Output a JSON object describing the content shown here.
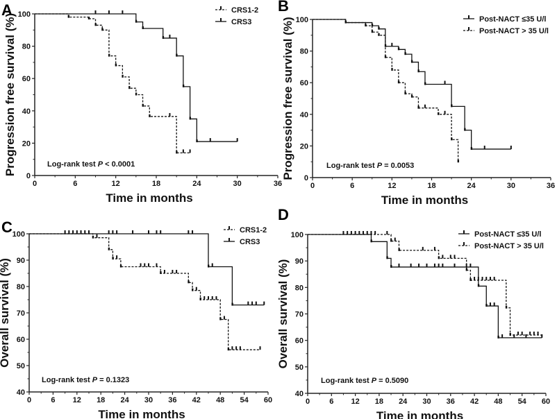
{
  "chart_data": [
    {
      "panel": "A",
      "type": "line",
      "xlabel": "Time in months",
      "ylabel": "Progression free survival (%)",
      "xlim": [
        0,
        36
      ],
      "ylim": [
        0,
        100
      ],
      "xticks": [
        0,
        6,
        12,
        18,
        24,
        30,
        36
      ],
      "yticks": [
        0,
        20,
        40,
        60,
        80,
        100
      ],
      "annotation": {
        "prefix": "Log-rank test ",
        "p": "P",
        "suffix": " < 0.0001"
      },
      "legend_position": "top-right",
      "series": [
        {
          "name": "CRS1-2",
          "style": "dashed",
          "steps": [
            [
              0,
              100
            ],
            [
              5,
              98
            ],
            [
              8,
              97
            ],
            [
              9,
              93
            ],
            [
              10,
              90
            ],
            [
              11,
              74
            ],
            [
              12,
              68
            ],
            [
              13,
              61
            ],
            [
              14,
              54
            ],
            [
              15,
              50
            ],
            [
              16,
              43
            ],
            [
              17,
              36.5
            ],
            [
              21,
              14
            ]
          ],
          "end": 23,
          "censored": [
            [
              20,
              36.5
            ],
            [
              22,
              14
            ],
            [
              23,
              14
            ]
          ]
        },
        {
          "name": "CRS3",
          "style": "solid",
          "steps": [
            [
              0,
              100
            ],
            [
              15,
              95
            ],
            [
              16,
              91
            ],
            [
              19,
              85
            ],
            [
              21,
              74
            ],
            [
              22,
              55
            ],
            [
              23,
              35
            ],
            [
              24,
              21
            ]
          ],
          "end": 30,
          "censored": [
            [
              9,
              100
            ],
            [
              11,
              100
            ],
            [
              13,
              100
            ],
            [
              20,
              85
            ],
            [
              26,
              21
            ],
            [
              30,
              21
            ]
          ]
        }
      ]
    },
    {
      "panel": "B",
      "type": "line",
      "xlabel": "Time in months",
      "ylabel": "Progression free survival (%)",
      "xlim": [
        0,
        36
      ],
      "ylim": [
        0,
        100
      ],
      "xticks": [
        0,
        6,
        12,
        18,
        24,
        30,
        36
      ],
      "yticks": [
        0,
        20,
        40,
        60,
        80,
        100
      ],
      "annotation": {
        "prefix": "Log-rank test ",
        "p": "P",
        "suffix": " = 0.0053"
      },
      "legend_position": "top-right",
      "series": [
        {
          "name": "Post-NACT ≤35 U/l",
          "style": "solid",
          "steps": [
            [
              0,
              100
            ],
            [
              5,
              98
            ],
            [
              9,
              96
            ],
            [
              10,
              94
            ],
            [
              11,
              83
            ],
            [
              13,
              81
            ],
            [
              14,
              78
            ],
            [
              15,
              73
            ],
            [
              16,
              67
            ],
            [
              17,
              59
            ],
            [
              21,
              45
            ],
            [
              23,
              30
            ],
            [
              24,
              18
            ]
          ],
          "end": 30,
          "censored": [
            [
              12,
              83
            ],
            [
              20,
              59
            ],
            [
              26,
              18
            ],
            [
              30,
              18
            ]
          ]
        },
        {
          "name": "Post-NACT > 35 U/l",
          "style": "dashed",
          "steps": [
            [
              0,
              100
            ],
            [
              5,
              98
            ],
            [
              8,
              96
            ],
            [
              9,
              92
            ],
            [
              10,
              90
            ],
            [
              11,
              76
            ],
            [
              12,
              68
            ],
            [
              13,
              60
            ],
            [
              14,
              53
            ],
            [
              15,
              51
            ],
            [
              16,
              44
            ],
            [
              19,
              40
            ],
            [
              21,
              24
            ],
            [
              22,
              10
            ]
          ],
          "end": 22,
          "censored": [
            [
              17,
              44
            ],
            [
              20,
              40
            ]
          ]
        }
      ]
    },
    {
      "panel": "C",
      "type": "line",
      "xlabel": "Time in months",
      "ylabel": "Overall survival (%)",
      "xlim": [
        0,
        60
      ],
      "ylim": [
        40,
        100
      ],
      "xticks": [
        0,
        6,
        12,
        18,
        24,
        30,
        36,
        42,
        48,
        54,
        60
      ],
      "yticks": [
        40,
        50,
        60,
        70,
        80,
        90,
        100
      ],
      "annotation": {
        "prefix": "Log-rank test ",
        "p": "P",
        "suffix": " = 0.1323"
      },
      "legend_position": "top-right",
      "series": [
        {
          "name": "CRS1-2",
          "style": "dashed",
          "steps": [
            [
              0,
              100
            ],
            [
              16,
              98.5
            ],
            [
              20,
              94
            ],
            [
              21,
              90.5
            ],
            [
              23,
              87.5
            ],
            [
              33,
              85
            ],
            [
              40,
              81.5
            ],
            [
              41,
              78.5
            ],
            [
              43,
              75
            ],
            [
              48,
              67.5
            ],
            [
              50,
              56
            ]
          ],
          "end": 58,
          "censored": [
            [
              17,
              98.5
            ],
            [
              22,
              90.5
            ],
            [
              28,
              87.5
            ],
            [
              29,
              87.5
            ],
            [
              30,
              87.5
            ],
            [
              32,
              87.5
            ],
            [
              34,
              85
            ],
            [
              36,
              85
            ],
            [
              37,
              85
            ],
            [
              42,
              78.5
            ],
            [
              44,
              75
            ],
            [
              45,
              75
            ],
            [
              46,
              75
            ],
            [
              47,
              75
            ],
            [
              49,
              67.5
            ],
            [
              51,
              56
            ],
            [
              52,
              56
            ],
            [
              53,
              56
            ],
            [
              58,
              56
            ]
          ]
        },
        {
          "name": "CRS3",
          "style": "solid",
          "steps": [
            [
              0,
              100
            ],
            [
              45,
              87.5
            ],
            [
              51,
              73
            ]
          ],
          "end": 59,
          "censored": [
            [
              9,
              100
            ],
            [
              10,
              100
            ],
            [
              11,
              100
            ],
            [
              12,
              100
            ],
            [
              13,
              100
            ],
            [
              14,
              100
            ],
            [
              15,
              100
            ],
            [
              20,
              100
            ],
            [
              21,
              100
            ],
            [
              22,
              100
            ],
            [
              26,
              100
            ],
            [
              30,
              100
            ],
            [
              32,
              100
            ],
            [
              33,
              100
            ],
            [
              40,
              100
            ],
            [
              41,
              100
            ],
            [
              46,
              87.5
            ],
            [
              55,
              73
            ],
            [
              56,
              73
            ],
            [
              57,
              73
            ],
            [
              59,
              73
            ]
          ]
        }
      ]
    },
    {
      "panel": "D",
      "type": "line",
      "xlabel": "Time in months",
      "ylabel": "Overall survival (%)",
      "xlim": [
        0,
        60
      ],
      "ylim": [
        40,
        100
      ],
      "xticks": [
        0,
        6,
        12,
        18,
        24,
        30,
        36,
        42,
        48,
        54,
        60
      ],
      "yticks": [
        40,
        50,
        60,
        70,
        80,
        90,
        100
      ],
      "annotation": {
        "prefix": "Log-rank test ",
        "p": "P",
        "suffix": " = 0.5090"
      },
      "legend_position": "top-right",
      "series": [
        {
          "name": "Post-NACT ≤35 U/l",
          "style": "solid",
          "steps": [
            [
              0,
              100
            ],
            [
              16,
              97.3
            ],
            [
              20,
              91
            ],
            [
              21,
              87.7
            ],
            [
              43,
              80.5
            ],
            [
              45,
              73
            ],
            [
              48,
              61
            ]
          ],
          "end": 59,
          "censored": [
            [
              9,
              100
            ],
            [
              10,
              100
            ],
            [
              11,
              100
            ],
            [
              12,
              100
            ],
            [
              13,
              100
            ],
            [
              14,
              100
            ],
            [
              15,
              100
            ],
            [
              23,
              87.7
            ],
            [
              26,
              87.7
            ],
            [
              28,
              87.7
            ],
            [
              30,
              87.7
            ],
            [
              32,
              87.7
            ],
            [
              33,
              87.7
            ],
            [
              34,
              87.7
            ],
            [
              37,
              87.7
            ],
            [
              40,
              87.7
            ],
            [
              41,
              87.7
            ],
            [
              46,
              73
            ],
            [
              47,
              73
            ],
            [
              49,
              61
            ],
            [
              52,
              61
            ],
            [
              55,
              61
            ],
            [
              59,
              61
            ]
          ]
        },
        {
          "name": "Post-NACT > 35 U/l",
          "style": "dashed",
          "steps": [
            [
              0,
              100
            ],
            [
              21,
              97.5
            ],
            [
              23,
              94
            ],
            [
              33,
              91
            ],
            [
              40,
              86.5
            ],
            [
              41,
              82.7
            ],
            [
              50,
              72.3
            ],
            [
              51,
              62
            ]
          ],
          "end": 59,
          "censored": [
            [
              16,
              100
            ],
            [
              17,
              100
            ],
            [
              20,
              100
            ],
            [
              22,
              97.5
            ],
            [
              29,
              94
            ],
            [
              32,
              94
            ],
            [
              34,
              91
            ],
            [
              36,
              91
            ],
            [
              37,
              91
            ],
            [
              42,
              82.7
            ],
            [
              43,
              82.7
            ],
            [
              44,
              82.7
            ],
            [
              45,
              82.7
            ],
            [
              46,
              82.7
            ],
            [
              47,
              82.7
            ],
            [
              53,
              62
            ],
            [
              54,
              62
            ],
            [
              56,
              62
            ],
            [
              57,
              62
            ],
            [
              58,
              62
            ]
          ]
        }
      ]
    }
  ]
}
